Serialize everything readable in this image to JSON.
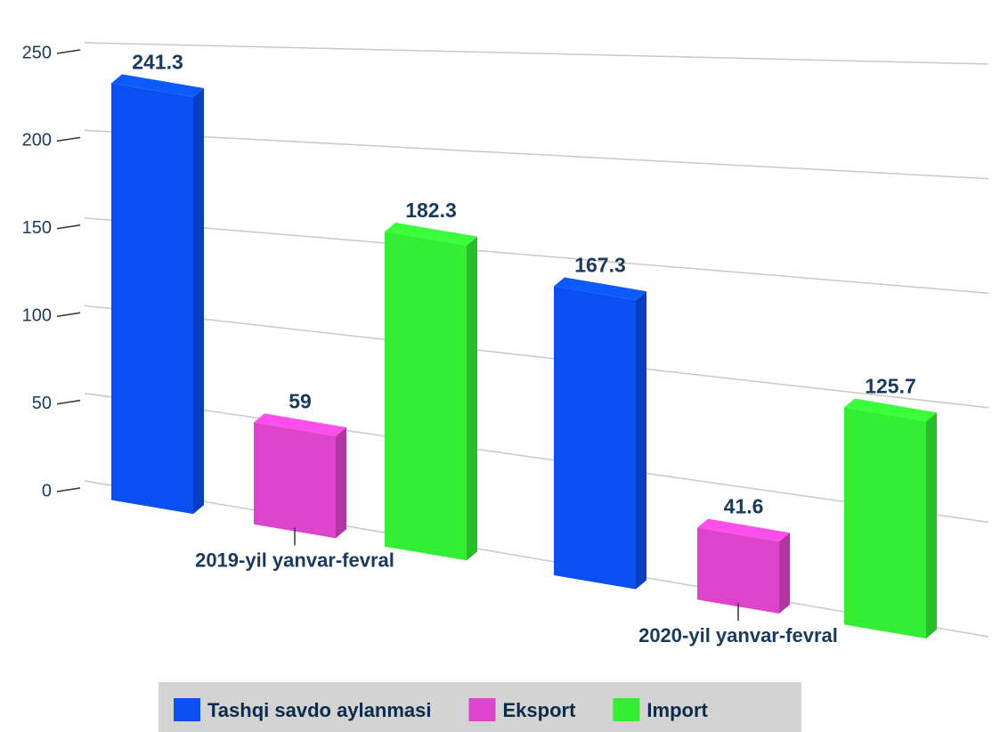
{
  "chart_data": {
    "type": "bar",
    "categories": [
      "2019-yil yanvar-fevral",
      "2020-yil yanvar-fevral"
    ],
    "series": [
      {
        "name": "Tashqi savdo aylanmasi",
        "color": "#0a4ff0",
        "values": [
          241.3,
          167.3
        ]
      },
      {
        "name": "Eksport",
        "color": "#dd44cc",
        "values": [
          59,
          41.6
        ]
      },
      {
        "name": "Import",
        "color": "#33ee33",
        "values": [
          182.3,
          125.7
        ]
      }
    ],
    "ylim": [
      0,
      250
    ],
    "yticks": [
      0,
      50,
      100,
      150,
      200,
      250
    ],
    "grid": true,
    "legend": "bottom"
  }
}
